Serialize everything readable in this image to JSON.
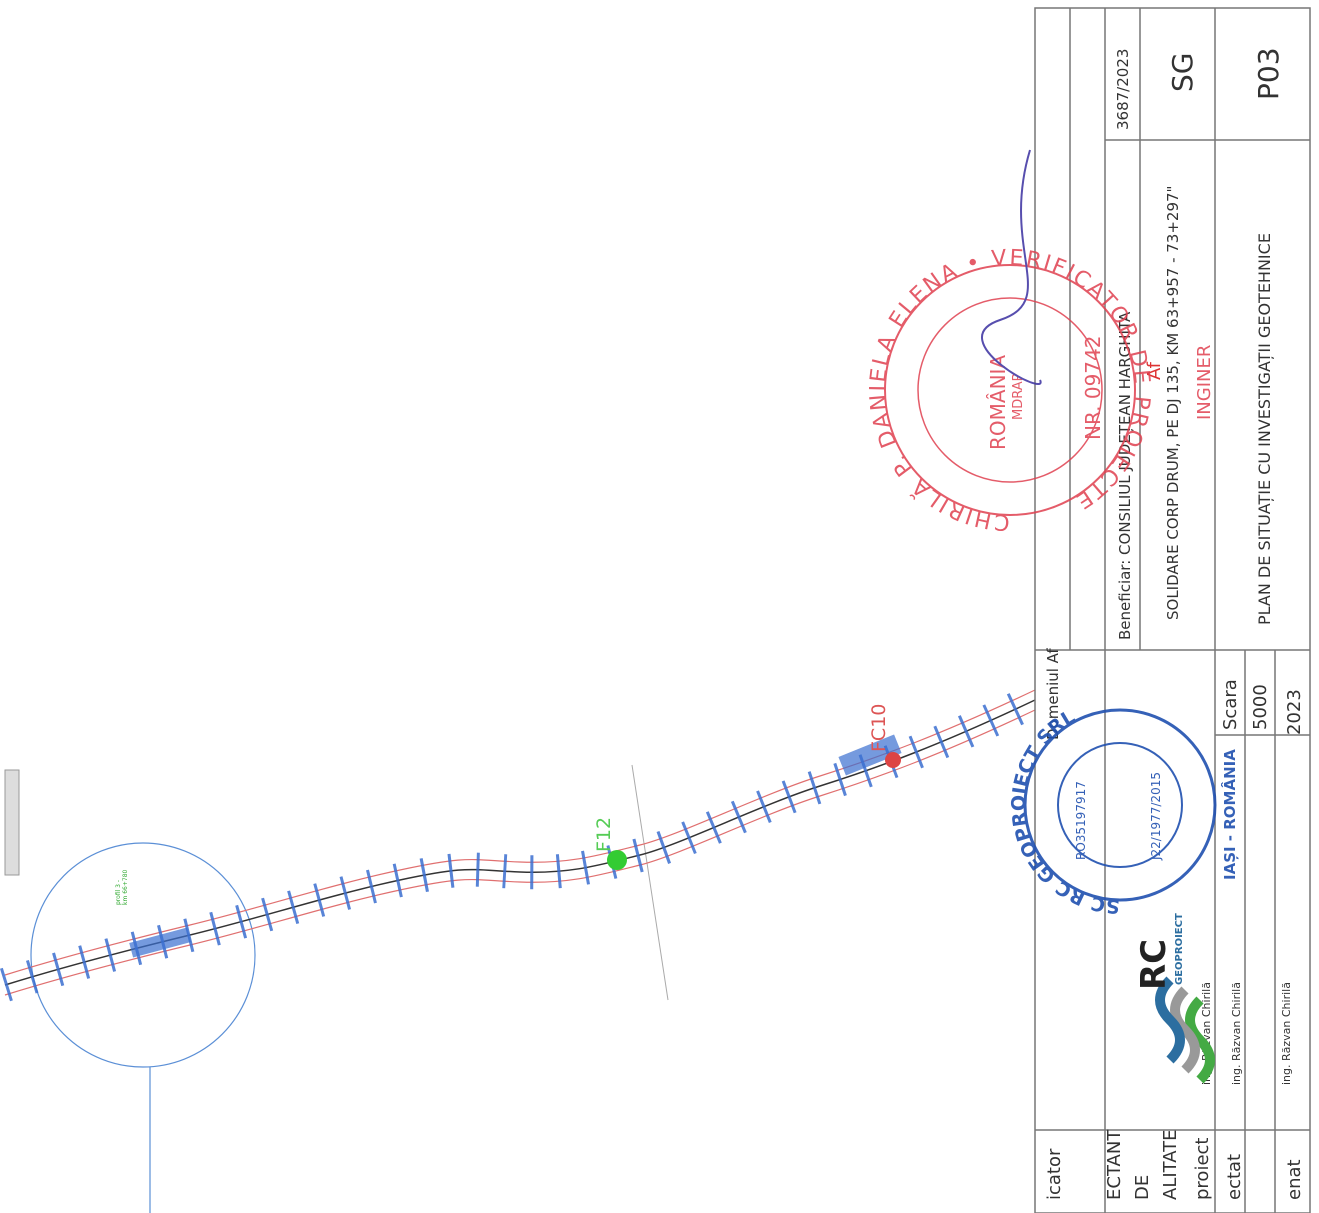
{
  "title_block": {
    "number": "3687/2023",
    "phase": "SG",
    "sheet": "P03",
    "beneficiary": "Beneficiar: CONSILIUL JUDEȚEAN HARGHITA",
    "project": "SOLIDARE CORP DRUM, PE DJ 135, KM 63+957 - 73+297\"",
    "drawing_title": "PLAN DE SITUAȚIE CU INVESTIGAȚII GEOTEHNICE",
    "domain_label": "Domeniul Af",
    "domain_value": "Af",
    "scale_label": "Scara",
    "scale": "5000",
    "year": "2023",
    "roles": [
      "icator",
      "ECTANT",
      "DE",
      "ALITATE",
      "proiect",
      "ectat",
      "enat"
    ],
    "engineers": [
      "ing. Răzvan Chirilă",
      "ing. Răzvan Chirilă",
      "ing. Răzvan Chirilă"
    ]
  },
  "drawing": {
    "labels": [
      "F12",
      "FC10",
      "profil 3 -",
      "km 66+780"
    ]
  },
  "stamps": {
    "verifier_ring": "CHIRILĂ P. DANIELA ELENA • VERIFICATOR DE PROIECTE",
    "verifier_country": "ROMÂNIA",
    "verifier_ministry": "MDRAP",
    "verifier_title": "INGINER",
    "verifier_number": "NR. 09742",
    "company_ring": "SC RC GEOPROIECT SRL",
    "company_city": "IAȘI - ROMÂNIA",
    "company_cui": "RO35197917",
    "company_reg": "J22/1977/2015",
    "logo_mark": "RC",
    "logo_name": "GEOPROIECT"
  }
}
